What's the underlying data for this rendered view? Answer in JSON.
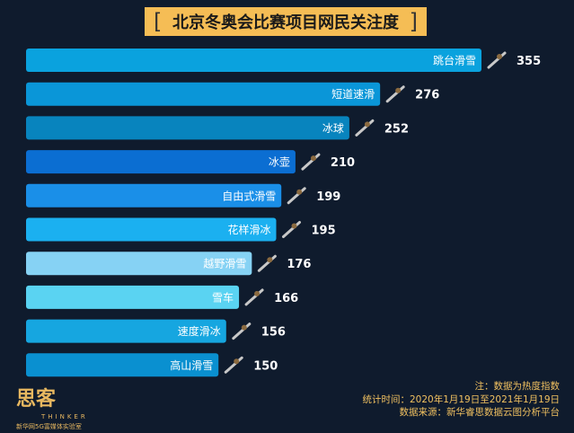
{
  "chart_data": {
    "type": "bar",
    "orientation": "horizontal",
    "title": "北京冬奥会比赛项目网民关注度",
    "categories": [
      "跳台滑雪",
      "短道速滑",
      "冰球",
      "冰壶",
      "自由式滑雪",
      "花样滑冰",
      "越野滑雪",
      "雪车",
      "速度滑冰",
      "高山滑雪"
    ],
    "values": [
      355,
      276,
      252,
      210,
      199,
      195,
      176,
      166,
      156,
      150
    ],
    "colors": [
      "#0aa2de",
      "#0a96d8",
      "#0884be",
      "#0b6ed2",
      "#1a8fe8",
      "#1bb0f0",
      "#86d2f4",
      "#5ad3f2",
      "#16a6e0",
      "#0a90d0"
    ],
    "xlabel": "",
    "ylabel": ""
  },
  "footer": {
    "note": "注：数据为热度指数",
    "period": "统计时间：2020年1月19日至2021年1月19日",
    "source": "数据来源：新华睿思数据云图分析平台"
  },
  "logo": {
    "name": "思客",
    "tagline": "THINKER",
    "org": "新华网5G富媒体实验室"
  }
}
